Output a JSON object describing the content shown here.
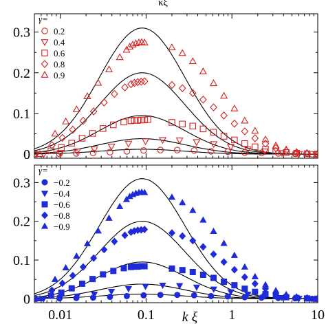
{
  "figure": {
    "top_label": "κξ"
  },
  "chart_data": [
    {
      "type": "scatter",
      "panel": "top",
      "xscale": "log",
      "xlim": [
        0.005,
        10
      ],
      "ylim": [
        -0.01,
        0.345
      ],
      "x_ticks": [
        0.01,
        0.1,
        1,
        10
      ],
      "x_tick_labels": [
        "",
        "",
        "",
        ""
      ],
      "y_ticks": [
        0,
        0.1,
        0.2,
        0.3
      ],
      "y_tick_labels": [
        "0",
        "0.1",
        "0.2",
        "0.3"
      ],
      "xlabel": "",
      "ylabel": "",
      "marker_color": "#d42020",
      "marker_fill": "open",
      "legend": {
        "title": "γ=",
        "position": "top-left"
      },
      "series": [
        {
          "name": "0.2",
          "marker": "circle",
          "theory_peak": 0.012,
          "x": [
            0.005,
            0.0098,
            0.0154,
            0.0242,
            0.038,
            0.0597,
            0.0937,
            0.147,
            0.231,
            0.363,
            0.571,
            0.896,
            1.41,
            2.21,
            3.47,
            5.46,
            8.57
          ],
          "y": [
            0.0,
            0.001,
            0.002,
            0.003,
            0.005,
            0.007,
            0.009,
            0.01,
            0.01,
            0.009,
            0.007,
            0.006,
            0.004,
            0.003,
            0.002,
            0.001,
            0.0
          ]
        },
        {
          "name": "0.4",
          "marker": "triangle-down",
          "theory_peak": 0.038,
          "x": [
            0.0064,
            0.01,
            0.0158,
            0.025,
            0.0395,
            0.0624,
            0.0985,
            0.156,
            0.246,
            0.388,
            0.614,
            0.97,
            1.53,
            2.42,
            3.83,
            6.05,
            9.56
          ],
          "y": [
            0.0,
            0.003,
            0.007,
            0.012,
            0.019,
            0.026,
            0.032,
            0.035,
            0.034,
            0.03,
            0.025,
            0.018,
            0.012,
            0.007,
            0.003,
            0.001,
            0.0
          ]
        },
        {
          "name": "0.6",
          "marker": "square",
          "theory_peak": 0.095,
          "x": [
            0.005,
            0.0078,
            0.0103,
            0.0136,
            0.018,
            0.0238,
            0.0315,
            0.0416,
            0.055,
            0.0667,
            0.073,
            0.08,
            0.0877,
            0.096,
            0.105,
            0.2,
            0.265,
            0.35,
            0.462,
            0.611,
            0.807,
            1.07,
            1.41,
            1.86,
            2.46,
            3.25,
            4.29,
            5.67,
            7.5,
            9.9
          ],
          "y": [
            0.0,
            0.008,
            0.016,
            0.027,
            0.039,
            0.051,
            0.063,
            0.072,
            0.079,
            0.082,
            0.083,
            0.083,
            0.084,
            0.084,
            0.085,
            0.078,
            0.074,
            0.069,
            0.062,
            0.054,
            0.044,
            0.035,
            0.026,
            0.018,
            0.012,
            0.007,
            0.004,
            0.002,
            0.001,
            0.0
          ]
        },
        {
          "name": "0.8",
          "marker": "diamond",
          "theory_peak": 0.2,
          "x": [
            0.005,
            0.008,
            0.0106,
            0.014,
            0.0185,
            0.0245,
            0.0324,
            0.0428,
            0.0566,
            0.0667,
            0.073,
            0.08,
            0.0877,
            0.096,
            0.2,
            0.265,
            0.35,
            0.462,
            0.611,
            0.807,
            1.07,
            1.41,
            1.86,
            2.46,
            3.25,
            4.29,
            5.67,
            7.5,
            9.9
          ],
          "y": [
            0.0,
            0.022,
            0.04,
            0.06,
            0.082,
            0.105,
            0.127,
            0.148,
            0.164,
            0.172,
            0.175,
            0.177,
            0.178,
            0.179,
            0.17,
            0.162,
            0.15,
            0.134,
            0.115,
            0.095,
            0.075,
            0.056,
            0.039,
            0.026,
            0.015,
            0.008,
            0.004,
            0.002,
            0.0
          ]
        },
        {
          "name": "0.9",
          "marker": "triangle-up",
          "theory_peak": 0.31,
          "x": [
            0.0058,
            0.0087,
            0.0116,
            0.0155,
            0.0207,
            0.0277,
            0.037,
            0.0494,
            0.0592,
            0.0645,
            0.07,
            0.076,
            0.0825,
            0.089,
            0.096,
            0.2,
            0.265,
            0.35,
            0.462,
            0.611,
            0.807,
            1.07,
            1.41,
            1.86,
            2.46,
            3.25,
            4.29,
            5.67,
            7.5,
            9.9
          ],
          "y": [
            0.0,
            0.05,
            0.08,
            0.11,
            0.142,
            0.175,
            0.208,
            0.238,
            0.256,
            0.264,
            0.269,
            0.272,
            0.274,
            0.275,
            0.274,
            0.262,
            0.248,
            0.228,
            0.203,
            0.174,
            0.143,
            0.112,
            0.082,
            0.057,
            0.036,
            0.021,
            0.011,
            0.005,
            0.002,
            0.0
          ]
        }
      ]
    },
    {
      "type": "scatter",
      "panel": "bottom",
      "xscale": "log",
      "xlim": [
        0.005,
        10
      ],
      "ylim": [
        -0.01,
        0.345
      ],
      "x_ticks": [
        0.01,
        0.1,
        1,
        10
      ],
      "x_tick_labels": [
        "0.01",
        "0.1",
        "1",
        "10"
      ],
      "y_ticks": [
        0,
        0.1,
        0.2,
        0.3
      ],
      "y_tick_labels": [
        "0",
        "0.1",
        "0.2",
        "0.3"
      ],
      "xlabel": "k ξ",
      "ylabel": "",
      "marker_color": "#1f2bd6",
      "marker_fill": "filled",
      "legend": {
        "title": "γ=",
        "position": "top-left"
      },
      "series": [
        {
          "name": "−0.2",
          "marker": "circle",
          "theory_peak": 0.012,
          "x": [
            0.005,
            0.0098,
            0.0154,
            0.0242,
            0.038,
            0.0597,
            0.0937,
            0.147,
            0.231,
            0.363,
            0.571,
            0.896,
            1.41,
            2.21,
            3.47,
            5.46,
            8.57
          ],
          "y": [
            0.0,
            0.001,
            0.002,
            0.003,
            0.005,
            0.007,
            0.009,
            0.01,
            0.01,
            0.009,
            0.007,
            0.006,
            0.004,
            0.003,
            0.002,
            0.001,
            0.0
          ]
        },
        {
          "name": "−0.4",
          "marker": "triangle-down",
          "theory_peak": 0.038,
          "x": [
            0.0064,
            0.01,
            0.0158,
            0.025,
            0.0395,
            0.0624,
            0.0985,
            0.156,
            0.246,
            0.388,
            0.614,
            0.97,
            1.53,
            2.42,
            3.83,
            6.05,
            9.56
          ],
          "y": [
            0.0,
            0.003,
            0.007,
            0.012,
            0.019,
            0.026,
            0.032,
            0.035,
            0.034,
            0.03,
            0.025,
            0.018,
            0.012,
            0.007,
            0.003,
            0.001,
            0.0
          ]
        },
        {
          "name": "−0.6",
          "marker": "square",
          "theory_peak": 0.095,
          "x": [
            0.005,
            0.0078,
            0.0103,
            0.0136,
            0.018,
            0.0238,
            0.0315,
            0.0416,
            0.055,
            0.0667,
            0.073,
            0.08,
            0.0877,
            0.096,
            0.2,
            0.265,
            0.35,
            0.462,
            0.611,
            0.807,
            1.07,
            1.41,
            1.86,
            2.46,
            3.25,
            4.29,
            5.67,
            7.5,
            9.9
          ],
          "y": [
            0.0,
            0.008,
            0.016,
            0.027,
            0.039,
            0.051,
            0.063,
            0.072,
            0.079,
            0.082,
            0.083,
            0.083,
            0.084,
            0.084,
            0.078,
            0.074,
            0.069,
            0.062,
            0.054,
            0.044,
            0.035,
            0.026,
            0.018,
            0.012,
            0.007,
            0.004,
            0.002,
            0.001,
            0.0
          ]
        },
        {
          "name": "−0.8",
          "marker": "diamond",
          "theory_peak": 0.2,
          "x": [
            0.005,
            0.008,
            0.0106,
            0.014,
            0.0185,
            0.0245,
            0.0324,
            0.0428,
            0.0566,
            0.0667,
            0.073,
            0.08,
            0.0877,
            0.096,
            0.2,
            0.265,
            0.35,
            0.462,
            0.611,
            0.807,
            1.07,
            1.41,
            1.86,
            2.46,
            3.25,
            4.29,
            5.67,
            7.5,
            9.9
          ],
          "y": [
            0.0,
            0.022,
            0.04,
            0.06,
            0.082,
            0.105,
            0.127,
            0.148,
            0.164,
            0.172,
            0.175,
            0.177,
            0.178,
            0.179,
            0.17,
            0.162,
            0.15,
            0.134,
            0.115,
            0.095,
            0.075,
            0.056,
            0.039,
            0.026,
            0.015,
            0.008,
            0.004,
            0.002,
            0.0
          ]
        },
        {
          "name": "−0.9",
          "marker": "triangle-up",
          "theory_peak": 0.31,
          "x": [
            0.0058,
            0.0087,
            0.0116,
            0.0155,
            0.0207,
            0.0277,
            0.037,
            0.0494,
            0.0592,
            0.0645,
            0.07,
            0.076,
            0.0825,
            0.089,
            0.096,
            0.2,
            0.265,
            0.35,
            0.462,
            0.611,
            0.807,
            1.07,
            1.41,
            1.86,
            2.46,
            3.25,
            4.29,
            5.67,
            7.5,
            9.9
          ],
          "y": [
            0.0,
            0.05,
            0.08,
            0.11,
            0.142,
            0.175,
            0.208,
            0.238,
            0.256,
            0.264,
            0.269,
            0.272,
            0.274,
            0.275,
            0.274,
            0.262,
            0.248,
            0.228,
            0.203,
            0.174,
            0.143,
            0.112,
            0.082,
            0.057,
            0.036,
            0.021,
            0.011,
            0.005,
            0.002,
            0.0
          ]
        }
      ]
    }
  ]
}
